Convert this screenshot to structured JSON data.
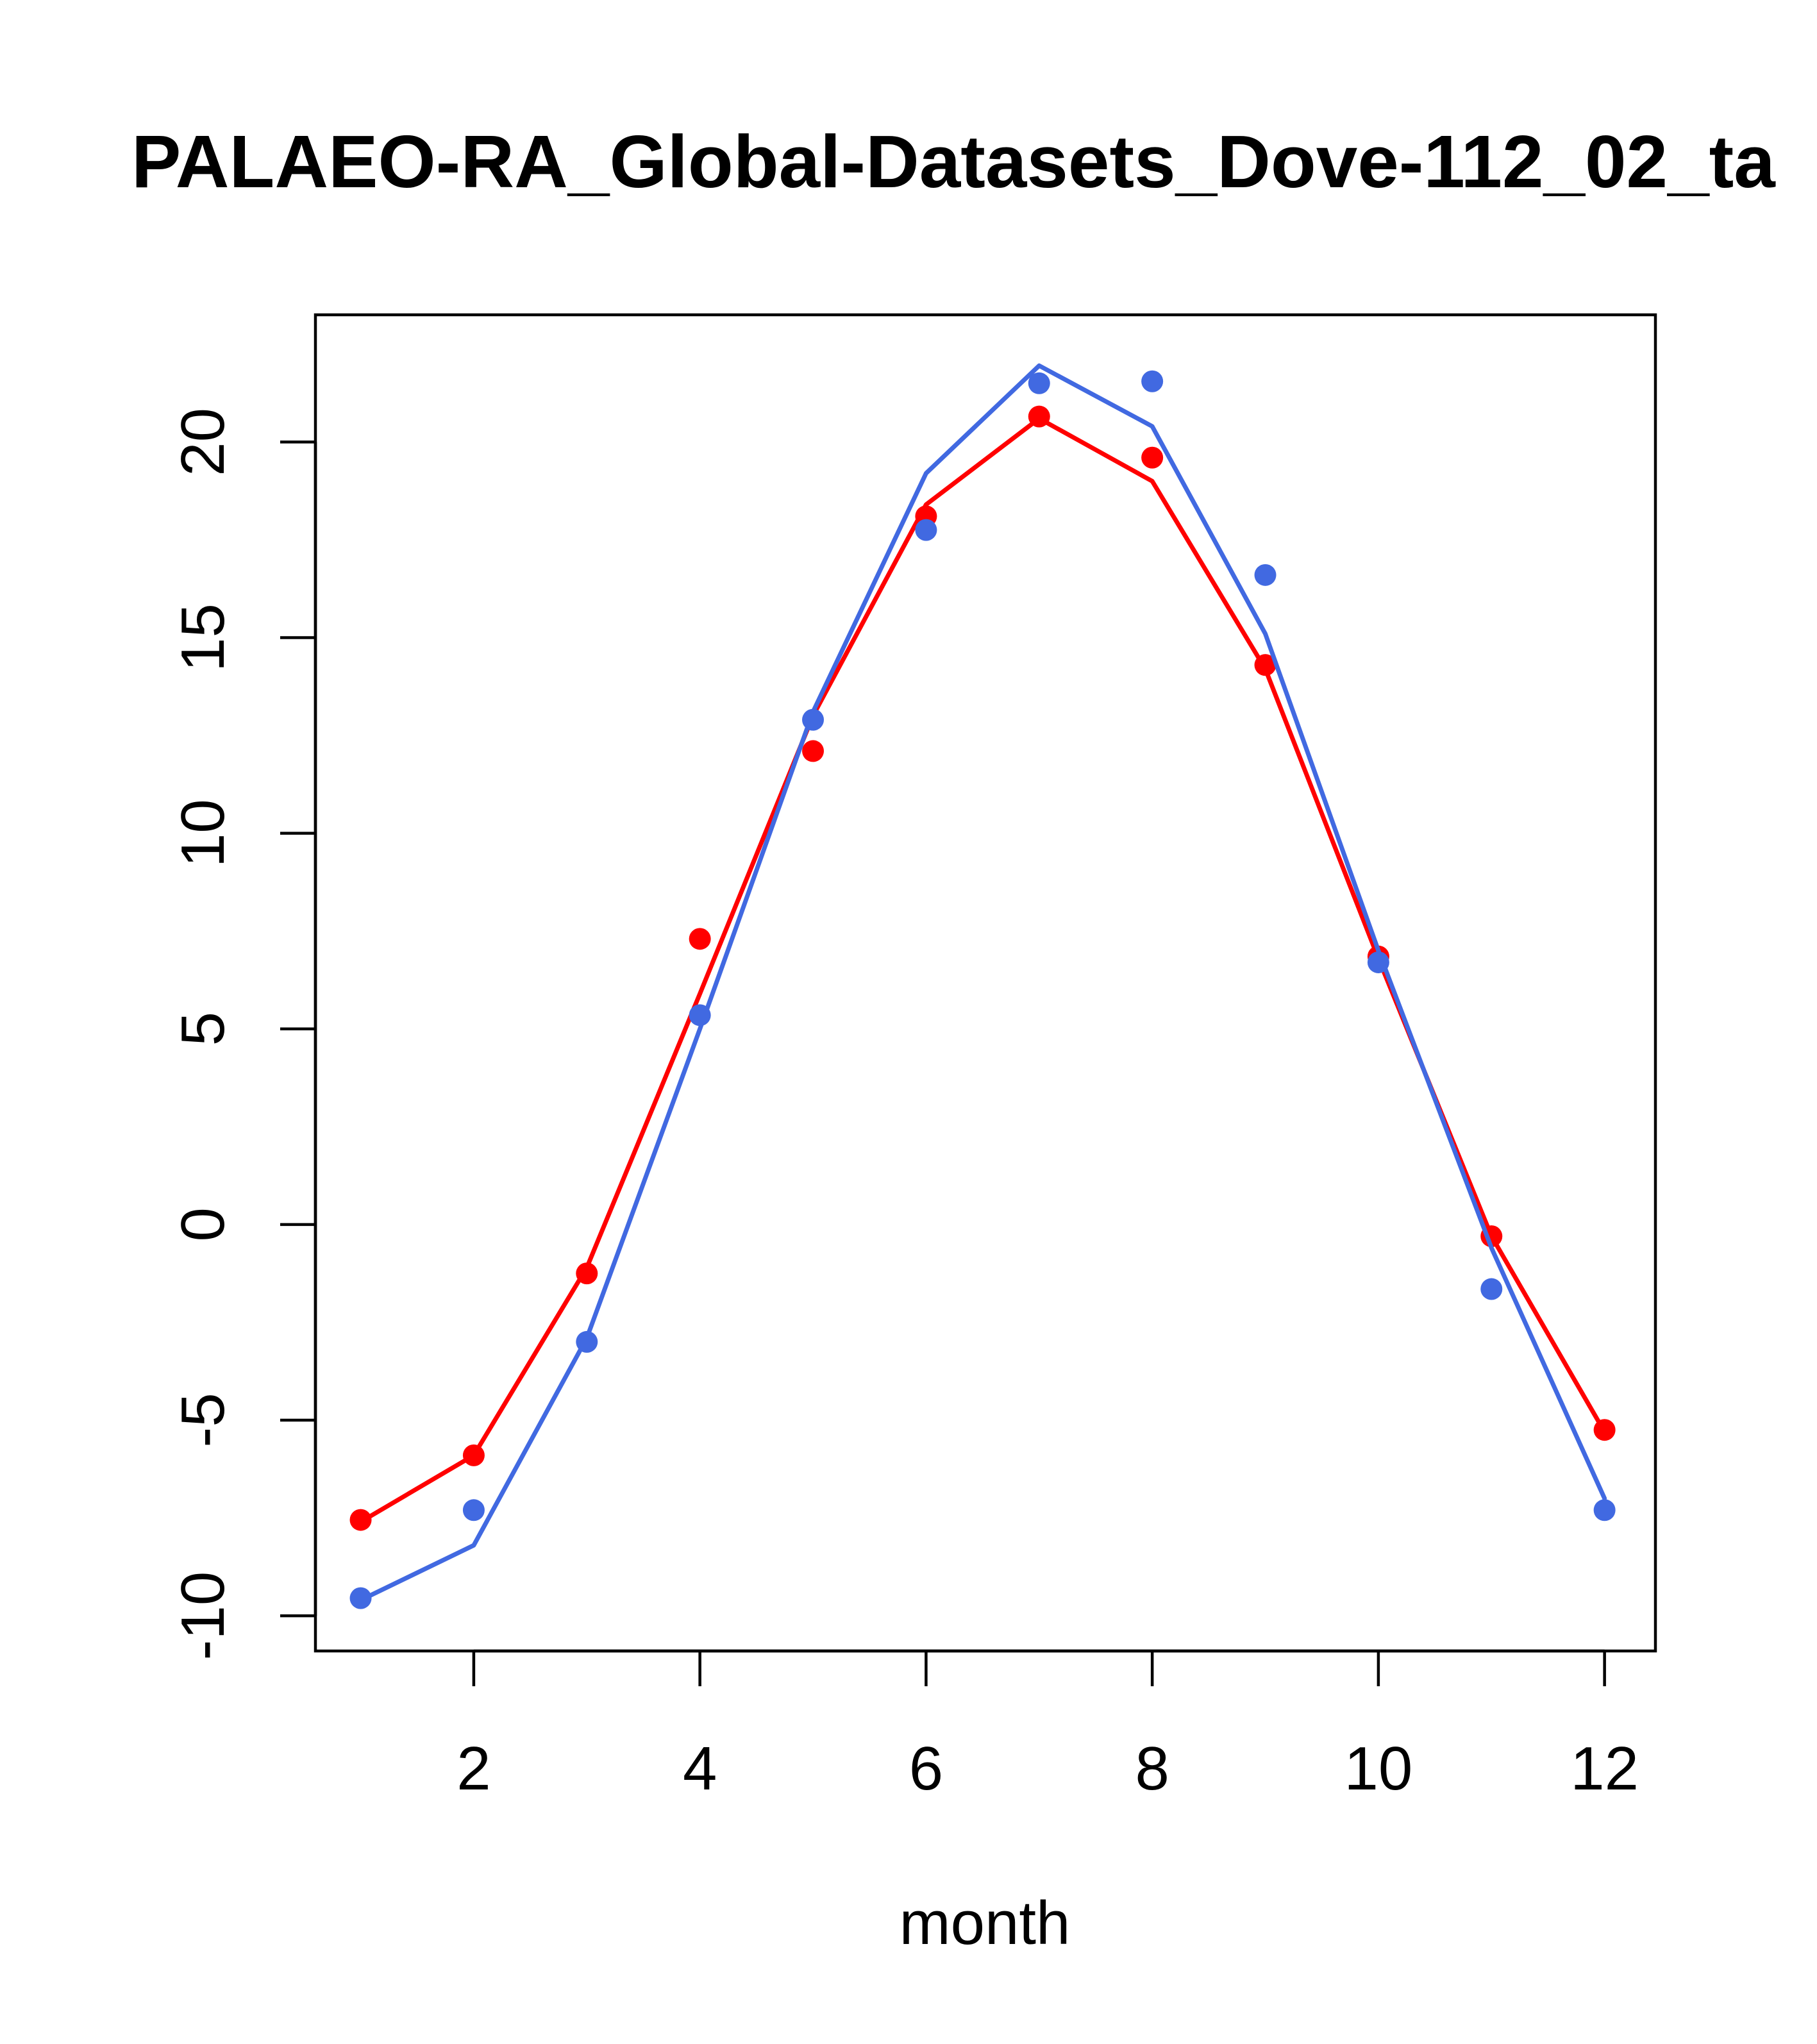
{
  "chart_data": {
    "type": "line",
    "title": "PALAEO-RA_Global-Datasets_Dove-112_02_ta",
    "xlabel": "month",
    "ylabel": "",
    "xlim": [
      0.6,
      12.45
    ],
    "ylim": [
      -10.9,
      23.25
    ],
    "x_ticks": [
      2,
      4,
      6,
      8,
      10,
      12
    ],
    "x_tick_labels": [
      "2",
      "4",
      "6",
      "8",
      "10",
      "12"
    ],
    "y_ticks": [
      -10,
      -5,
      0,
      5,
      10,
      15,
      20
    ],
    "y_tick_labels": [
      "-10",
      "-5",
      "0",
      "5",
      "10",
      "15",
      "20"
    ],
    "grid": false,
    "x": [
      1,
      2,
      3,
      4,
      5,
      6,
      7,
      8,
      9,
      10,
      11,
      12
    ],
    "series": [
      {
        "color": "#ff0000",
        "line": [
          -7.6,
          -5.9,
          -1.1,
          5.9,
          13.0,
          18.4,
          20.6,
          19.0,
          14.2,
          6.8,
          -0.3,
          -5.3
        ],
        "points": [
          -7.55,
          -5.9,
          -1.25,
          7.3,
          12.1,
          18.1,
          20.65,
          19.6,
          14.3,
          6.85,
          -0.3,
          -5.25
        ]
      },
      {
        "color": "#4169e1",
        "line": [
          -9.6,
          -8.2,
          -2.9,
          5.0,
          13.1,
          19.2,
          21.95,
          20.4,
          15.1,
          7.0,
          -0.6,
          -7.0
        ],
        "points": [
          -9.55,
          -7.3,
          -3.0,
          5.35,
          12.9,
          17.75,
          21.5,
          21.55,
          16.6,
          6.7,
          -1.65,
          -7.3
        ]
      }
    ]
  }
}
